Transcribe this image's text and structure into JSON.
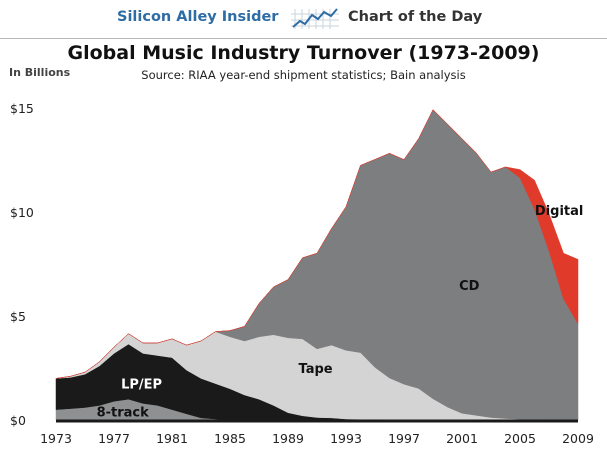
{
  "header": {
    "brand": "Silicon Alley Insider",
    "section": "Chart of the Day"
  },
  "chart_data": {
    "type": "area",
    "title": "Global Music Industry Turnover (1973-2009)",
    "subtitle": "Source: RIAA year-end shipment statistics; Bain analysis",
    "unit_label": "In Billions",
    "xlabel": "",
    "ylabel": "",
    "x": [
      1973,
      1974,
      1975,
      1976,
      1977,
      1978,
      1979,
      1980,
      1981,
      1982,
      1983,
      1984,
      1985,
      1986,
      1987,
      1988,
      1989,
      1990,
      1991,
      1992,
      1993,
      1994,
      1995,
      1996,
      1997,
      1998,
      1999,
      2000,
      2001,
      2002,
      2003,
      2004,
      2005,
      2006,
      2007,
      2008,
      2009
    ],
    "xlim": [
      1973,
      2009
    ],
    "ylim": [
      0,
      15
    ],
    "x_ticks": [
      1973,
      1977,
      1981,
      1985,
      1989,
      1993,
      1997,
      2001,
      2005,
      2009
    ],
    "y_ticks": [
      0,
      5,
      10,
      15
    ],
    "y_tick_labels": [
      "$0",
      "$5",
      "$10",
      "$15"
    ],
    "series": [
      {
        "name": "8-track",
        "color": "#8f9092",
        "label_x": 1977.6,
        "label_y": 0.4,
        "values": [
          0.5,
          0.55,
          0.6,
          0.7,
          0.9,
          1.0,
          0.8,
          0.7,
          0.5,
          0.3,
          0.1,
          0.05,
          0,
          0,
          0,
          0,
          0,
          0,
          0,
          0,
          0,
          0,
          0,
          0,
          0,
          0,
          0,
          0,
          0,
          0,
          0,
          0,
          0,
          0,
          0,
          0,
          0
        ]
      },
      {
        "name": "LP/EP",
        "color": "#1a1a1a",
        "label_x": 1978.9,
        "label_y": 1.75,
        "values": [
          1.5,
          1.5,
          1.6,
          1.9,
          2.3,
          2.65,
          2.4,
          2.4,
          2.5,
          2.1,
          1.9,
          1.7,
          1.5,
          1.2,
          1.0,
          0.7,
          0.35,
          0.2,
          0.12,
          0.1,
          0.05,
          0.04,
          0.03,
          0.02,
          0.02,
          0.02,
          0.02,
          0.02,
          0.02,
          0.02,
          0.02,
          0.02,
          0.02,
          0.02,
          0.02,
          0.02,
          0.02
        ]
      },
      {
        "name": "Tape",
        "color": "#d4d4d4",
        "label_x": 1990.9,
        "label_y": 2.5,
        "values": [
          0,
          0.05,
          0.1,
          0.2,
          0.3,
          0.5,
          0.5,
          0.6,
          0.9,
          1.2,
          1.8,
          2.5,
          2.5,
          2.6,
          3.0,
          3.4,
          3.6,
          3.7,
          3.3,
          3.5,
          3.3,
          3.2,
          2.5,
          2.0,
          1.7,
          1.5,
          1.0,
          0.6,
          0.3,
          0.2,
          0.1,
          0.05,
          0.02,
          0.01,
          0,
          0,
          0
        ]
      },
      {
        "name": "CD",
        "color": "#7d7e80",
        "label_x": 2001.5,
        "label_y": 6.5,
        "values": [
          0,
          0,
          0,
          0,
          0,
          0,
          0,
          0,
          0,
          0,
          0,
          0,
          0.3,
          0.7,
          1.6,
          2.3,
          2.8,
          3.9,
          4.6,
          5.6,
          6.9,
          9.0,
          10.0,
          10.8,
          10.8,
          12.0,
          13.9,
          13.6,
          13.2,
          12.6,
          11.8,
          12.1,
          11.6,
          10.1,
          8.1,
          5.8,
          4.6
        ]
      },
      {
        "name": "Digital",
        "color": "#e03a2b",
        "label_x": 2007.7,
        "label_y": 10.1,
        "values": [
          0,
          0,
          0,
          0,
          0,
          0,
          0,
          0,
          0,
          0,
          0,
          0,
          0,
          0,
          0,
          0,
          0,
          0,
          0,
          0,
          0,
          0,
          0,
          0,
          0,
          0,
          0,
          0,
          0,
          0,
          0,
          0,
          0.4,
          1.4,
          1.8,
          2.2,
          3.1
        ]
      }
    ],
    "legend": "none (series labeled directly on areas)",
    "grid": false
  }
}
